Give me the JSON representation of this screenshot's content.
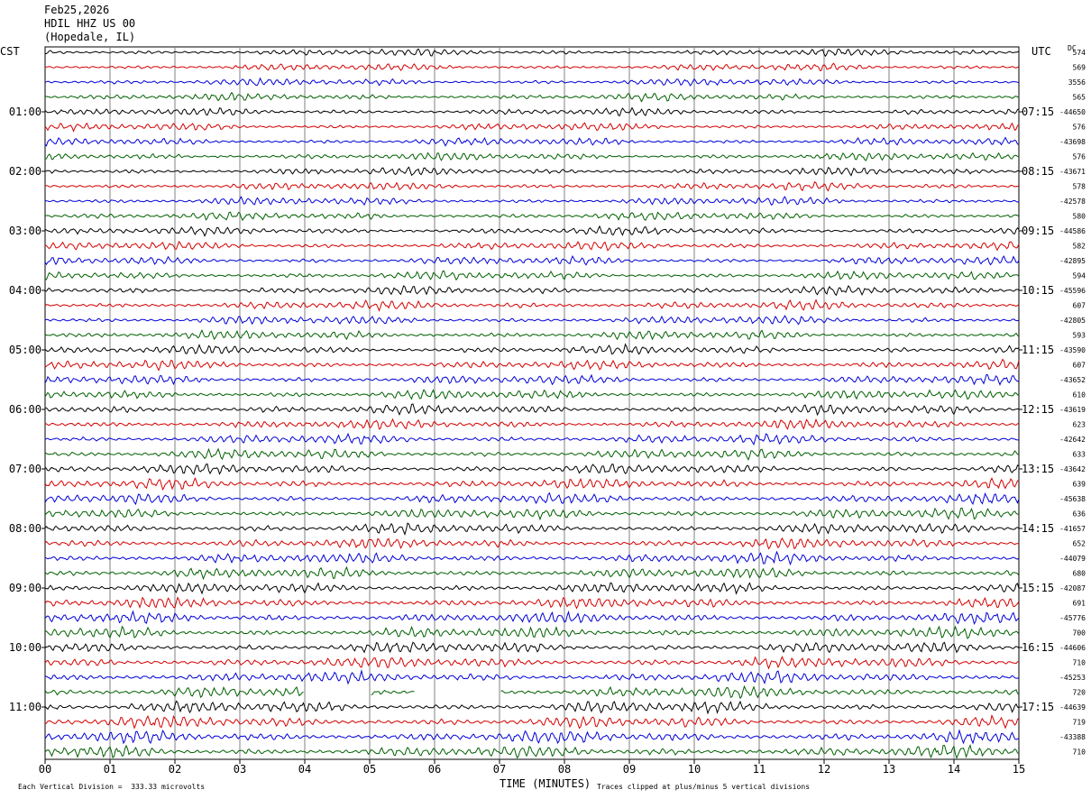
{
  "header": {
    "date": "Feb25,2026",
    "station": "HDIL HHZ US 00",
    "location": "(Hopedale, IL)"
  },
  "left_tz": "CST",
  "right_tz": "UTC",
  "dc_header": "DC",
  "xlabel": "TIME (MINUTES)",
  "footer": {
    "scale": "Each Vertical Division =  333.33 microvolts",
    "clip": "Traces clipped at plus/minus 5 vertical divisions"
  },
  "colors": {
    "trace_cycle": [
      "#000000",
      "#d40000",
      "#0000d8",
      "#006000"
    ],
    "grid": "#808080"
  },
  "chart_data": {
    "type": "line",
    "title": "HDIL HHZ US 00 (Hopedale, IL)",
    "xlabel": "TIME (MINUTES)",
    "xlim": [
      0,
      15
    ],
    "x_ticks": [
      "00",
      "01",
      "02",
      "03",
      "04",
      "05",
      "06",
      "07",
      "08",
      "09",
      "10",
      "11",
      "12",
      "13",
      "14",
      "15"
    ],
    "rows": 48,
    "minutes_per_row": 15,
    "left_time_labels": [
      {
        "row": 4,
        "label": "01:00"
      },
      {
        "row": 8,
        "label": "02:00"
      },
      {
        "row": 12,
        "label": "03:00"
      },
      {
        "row": 16,
        "label": "04:00"
      },
      {
        "row": 20,
        "label": "05:00"
      },
      {
        "row": 24,
        "label": "06:00"
      },
      {
        "row": 28,
        "label": "07:00"
      },
      {
        "row": 32,
        "label": "08:00"
      },
      {
        "row": 36,
        "label": "09:00"
      },
      {
        "row": 40,
        "label": "10:00"
      },
      {
        "row": 44,
        "label": "11:00"
      }
    ],
    "right_time_labels": [
      {
        "row": 4,
        "label": "07:15"
      },
      {
        "row": 8,
        "label": "08:15"
      },
      {
        "row": 12,
        "label": "09:15"
      },
      {
        "row": 16,
        "label": "10:15"
      },
      {
        "row": 20,
        "label": "11:15"
      },
      {
        "row": 24,
        "label": "12:15"
      },
      {
        "row": 28,
        "label": "13:15"
      },
      {
        "row": 32,
        "label": "14:15"
      },
      {
        "row": 36,
        "label": "15:15"
      },
      {
        "row": 40,
        "label": "16:15"
      },
      {
        "row": 44,
        "label": "17:15"
      }
    ],
    "dc_offsets": [
      "574",
      "569",
      "3556",
      "565",
      "-44650",
      "576",
      "-43698",
      "576",
      "-43671",
      "578",
      "-42578",
      "580",
      "-44586",
      "582",
      "-42895",
      "594",
      "-45596",
      "607",
      "-42805",
      "593",
      "-43590",
      "607",
      "-43652",
      "610",
      "-43619",
      "623",
      "-42642",
      "633",
      "-43642",
      "639",
      "-45638",
      "636",
      "-41657",
      "652",
      "-44079",
      "680",
      "-42087",
      "691",
      "-45776",
      "700",
      "-44606",
      "710",
      "-45253",
      "720",
      "-44639",
      "719",
      "-43388",
      "710"
    ],
    "amplitude_units": "vertical divisions",
    "division_microvolts": 333.33,
    "gaps": [
      {
        "row": 43,
        "start_min": 4.0,
        "end_min": 5.0
      },
      {
        "row": 43,
        "start_min": 5.7,
        "end_min": 7.0
      }
    ]
  }
}
